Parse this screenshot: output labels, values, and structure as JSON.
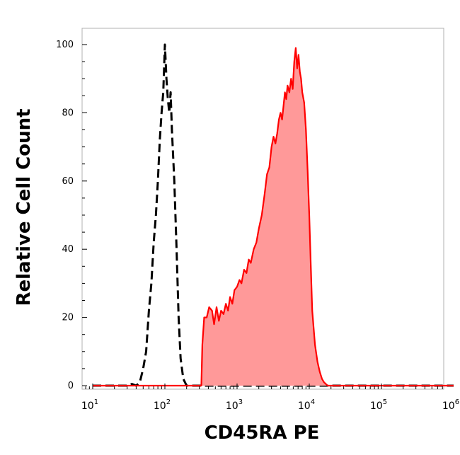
{
  "chart_data": {
    "type": "area",
    "xlabel": "CD45RA PE",
    "ylabel": "Relative Cell Count",
    "xscale": "log",
    "xlim": [
      1,
      1000000
    ],
    "ylim": [
      0,
      100
    ],
    "x_tick_labels": [
      {
        "value": 10,
        "base": "10",
        "exp": "1"
      },
      {
        "value": 100,
        "base": "10",
        "exp": "2"
      },
      {
        "value": 1000,
        "base": "10",
        "exp": "3"
      },
      {
        "value": 10000,
        "base": "10",
        "exp": "4"
      },
      {
        "value": 100000,
        "base": "10",
        "exp": "5"
      },
      {
        "value": 1000000,
        "base": "10",
        "exp": "6"
      }
    ],
    "y_ticks": [
      0,
      20,
      40,
      60,
      80,
      100
    ],
    "y_tick_labels": [
      "0",
      "20",
      "40",
      "60",
      "80",
      "100"
    ],
    "grid": false,
    "series": [
      {
        "style": "dashed",
        "color": "#000000",
        "filled": false,
        "points": [
          [
            10,
            0
          ],
          [
            30,
            0
          ],
          [
            35,
            0.5
          ],
          [
            40,
            0
          ],
          [
            45,
            1
          ],
          [
            50,
            5
          ],
          [
            55,
            10
          ],
          [
            60,
            22
          ],
          [
            65,
            30
          ],
          [
            70,
            42
          ],
          [
            75,
            50
          ],
          [
            80,
            60
          ],
          [
            85,
            72
          ],
          [
            90,
            80
          ],
          [
            95,
            86
          ],
          [
            100,
            100
          ],
          [
            105,
            90
          ],
          [
            110,
            84
          ],
          [
            115,
            80
          ],
          [
            120,
            86
          ],
          [
            125,
            75
          ],
          [
            135,
            60
          ],
          [
            145,
            40
          ],
          [
            155,
            20
          ],
          [
            165,
            8
          ],
          [
            180,
            2
          ],
          [
            200,
            0
          ],
          [
            1000000,
            0
          ]
        ]
      },
      {
        "style": "solid",
        "color": "#ff0000",
        "fill": "#ff9999",
        "filled": true,
        "points": [
          [
            10,
            0
          ],
          [
            320,
            0
          ],
          [
            330,
            12
          ],
          [
            350,
            20
          ],
          [
            380,
            20
          ],
          [
            410,
            23
          ],
          [
            450,
            22
          ],
          [
            480,
            18
          ],
          [
            520,
            23
          ],
          [
            560,
            19
          ],
          [
            600,
            22
          ],
          [
            650,
            21
          ],
          [
            700,
            24
          ],
          [
            750,
            22
          ],
          [
            800,
            26
          ],
          [
            860,
            24
          ],
          [
            920,
            28
          ],
          [
            1000,
            29
          ],
          [
            1080,
            31
          ],
          [
            1150,
            30
          ],
          [
            1250,
            34
          ],
          [
            1350,
            33
          ],
          [
            1450,
            37
          ],
          [
            1550,
            36
          ],
          [
            1700,
            40
          ],
          [
            1850,
            42
          ],
          [
            2000,
            46
          ],
          [
            2200,
            50
          ],
          [
            2400,
            56
          ],
          [
            2600,
            62
          ],
          [
            2800,
            64
          ],
          [
            3000,
            70
          ],
          [
            3200,
            73
          ],
          [
            3400,
            71
          ],
          [
            3600,
            74
          ],
          [
            3800,
            78
          ],
          [
            4000,
            80
          ],
          [
            4200,
            78
          ],
          [
            4400,
            82
          ],
          [
            4600,
            86
          ],
          [
            4800,
            84
          ],
          [
            5000,
            88
          ],
          [
            5300,
            86
          ],
          [
            5600,
            90
          ],
          [
            5900,
            87
          ],
          [
            6200,
            95
          ],
          [
            6500,
            99
          ],
          [
            6800,
            93
          ],
          [
            7100,
            97
          ],
          [
            7400,
            92
          ],
          [
            7700,
            90
          ],
          [
            8000,
            86
          ],
          [
            8500,
            83
          ],
          [
            9000,
            75
          ],
          [
            9500,
            63
          ],
          [
            10000,
            50
          ],
          [
            10500,
            35
          ],
          [
            11000,
            22
          ],
          [
            12000,
            12
          ],
          [
            13000,
            7
          ],
          [
            14000,
            4
          ],
          [
            15000,
            2
          ],
          [
            16000,
            1
          ],
          [
            18000,
            0
          ],
          [
            1000000,
            0
          ]
        ]
      }
    ]
  }
}
